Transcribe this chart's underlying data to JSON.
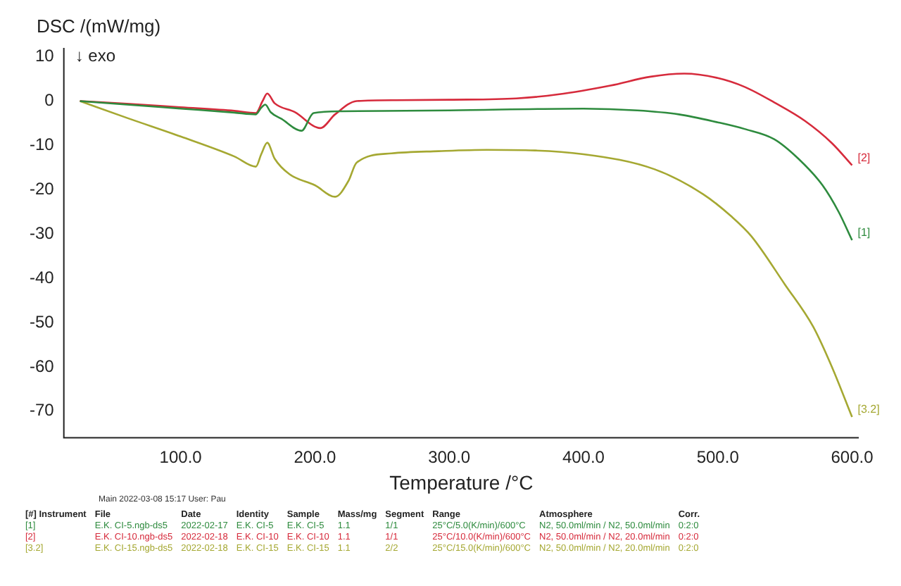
{
  "chart_data": {
    "type": "line",
    "ylabel": "DSC /(mW/mg)",
    "xlabel": "Temperature /°C",
    "xlim": [
      13,
      605
    ],
    "ylim": [
      -76,
      12
    ],
    "xticks": [
      {
        "value": 100,
        "label": "100.0"
      },
      {
        "value": 200,
        "label": "200.0"
      },
      {
        "value": 300,
        "label": "300.0"
      },
      {
        "value": 400,
        "label": "400.0"
      },
      {
        "value": 500,
        "label": "500.0"
      },
      {
        "value": 600,
        "label": "600.0"
      }
    ],
    "yticks": [
      10,
      0,
      -10,
      -20,
      -30,
      -40,
      -50,
      -60,
      -70
    ],
    "grid": false,
    "legend": false,
    "marker": "none",
    "line_style": "solid",
    "series": [
      {
        "name": "[1]",
        "color": "#2e8b3e",
        "x": [
          25,
          60,
          100,
          140,
          156,
          160,
          163,
          167,
          175,
          190,
          199,
          220,
          300,
          400,
          440,
          471,
          500,
          520,
          542,
          560,
          578,
          590,
          600
        ],
        "values": [
          0,
          -0.8,
          -1.7,
          -2.6,
          -3,
          -1.5,
          -0.8,
          -2.5,
          -4,
          -6.7,
          -2.7,
          -2.3,
          -2.1,
          -1.7,
          -2.1,
          -3,
          -4.8,
          -6.3,
          -8.6,
          -13,
          -19,
          -25,
          -31.4
        ]
      },
      {
        "name": "[2]",
        "color": "#d62b3c",
        "x": [
          25,
          60,
          100,
          140,
          156,
          161,
          164.5,
          170,
          185,
          204,
          215,
          231,
          260,
          300,
          350,
          381,
          420,
          450,
          475,
          500,
          520,
          542,
          565,
          585,
          600
        ],
        "values": [
          0,
          -0.6,
          -1.4,
          -2.2,
          -2.7,
          0,
          1.7,
          -0.5,
          -2.5,
          -6.1,
          -3,
          0,
          0.2,
          0.3,
          0.6,
          1.5,
          3.5,
          5.5,
          6.2,
          5.2,
          3.2,
          -0.3,
          -4.5,
          -9.5,
          -14.5
        ]
      },
      {
        "name": "[3.2]",
        "color": "#a5a832",
        "x": [
          25,
          60,
          100,
          140,
          156,
          160,
          164.5,
          170,
          181,
          200,
          215,
          225,
          231,
          257,
          292,
          328,
          400,
          453,
          489,
          510,
          525,
          550,
          571,
          585,
          600
        ],
        "values": [
          0,
          -3.8,
          -8,
          -12.5,
          -14.8,
          -12,
          -9.4,
          -13,
          -16.5,
          -19,
          -21.6,
          -18,
          -13.9,
          -11.8,
          -11.3,
          -11,
          -12,
          -15.4,
          -21,
          -26,
          -30.5,
          -41.4,
          -50.9,
          -60,
          -71.3
        ]
      }
    ],
    "annotations": [
      "↓ exo",
      "Main   2022-03-08 15:17   User: Pau",
      "[#] Instrument\tFile\tDate\tIdentity\tSample\tMass/mg\tSegment\tRange\tAtmosphere\tCorr.",
      "[1]\tE.K. CI-5.ngb-ds5\t2022-02-17\tE.K. CI-5\tE.K. CI-5\t1.1\t1/1\t25°C/5.0(K/min)/600°C\tN2, 50.0ml/min / N2, 50.0ml/min\t0:2:0",
      "[2]\tE.K. CI-10.ngb-ds5\t2022-02-18\tE.K. CI-10\tE.K. CI-10\t1.1\t1/1\t25°C/10.0(K/min)/600°C\tN2, 50.0ml/min / N2, 20.0ml/min\t0:2:0",
      "[3.2]\tE.K. CI-15.ngb-ds5\t2022-02-18\tE.K. CI-15\tE.K. CI-15\t1.1\t2/2\t25°C/15.0(K/min)/600°C\tN2, 50.0ml/min / N2, 20.0ml/min\t0:2:0"
    ]
  }
}
